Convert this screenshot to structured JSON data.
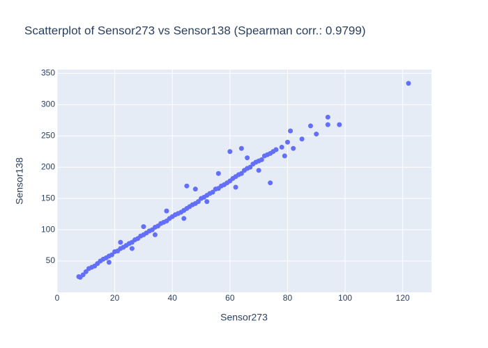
{
  "chart_data": {
    "type": "scatter",
    "title": "Scatterplot of Sensor273 vs Sensor138 (Spearman corr.: 0.9799)",
    "x_label": "Sensor273",
    "y_label": "Sensor138",
    "color": "#636efa",
    "background": "#e5ecf6",
    "grid": true,
    "xlim": [
      0,
      130
    ],
    "ylim": [
      0,
      356
    ],
    "xticks": [
      0,
      20,
      40,
      60,
      80,
      100,
      120
    ],
    "yticks": [
      50,
      100,
      150,
      200,
      250,
      300,
      350
    ],
    "x": [
      7.5,
      8,
      9,
      10,
      11,
      12,
      13,
      14,
      15,
      16,
      17,
      18,
      19,
      20,
      21,
      22,
      23,
      24,
      25,
      26,
      27,
      28,
      29,
      30,
      31,
      32,
      33,
      34,
      35,
      36,
      37,
      38,
      39,
      40,
      41,
      42,
      43,
      44,
      45,
      46,
      47,
      48,
      49,
      50,
      51,
      52,
      53,
      54,
      55,
      56,
      57,
      58,
      59,
      60,
      61,
      62,
      63,
      64,
      65,
      66,
      67,
      68,
      69,
      70,
      71,
      72,
      73,
      74,
      75,
      76,
      78,
      79,
      80,
      81,
      82,
      85,
      88,
      90,
      94,
      94,
      98,
      122,
      18,
      22,
      26,
      30,
      34,
      38,
      44,
      48,
      52,
      56,
      62,
      66,
      70,
      74,
      45,
      60,
      64
    ],
    "y": [
      25,
      24,
      28,
      33,
      38,
      40,
      42,
      46,
      50,
      53,
      55,
      58,
      60,
      65,
      66,
      70,
      72,
      75,
      78,
      80,
      84,
      86,
      90,
      92,
      95,
      98,
      100,
      104,
      106,
      110,
      112,
      114,
      118,
      121,
      124,
      126,
      128,
      131,
      134,
      137,
      140,
      142,
      145,
      150,
      152,
      155,
      158,
      160,
      165,
      166,
      170,
      172,
      175,
      178,
      182,
      185,
      188,
      190,
      195,
      198,
      200,
      205,
      208,
      210,
      212,
      218,
      220,
      222,
      225,
      228,
      232,
      218,
      240,
      258,
      230,
      245,
      266,
      253,
      280,
      268,
      268,
      334,
      48,
      80,
      70,
      105,
      92,
      130,
      118,
      165,
      145,
      190,
      168,
      215,
      195,
      175,
      170,
      225,
      230
    ]
  }
}
